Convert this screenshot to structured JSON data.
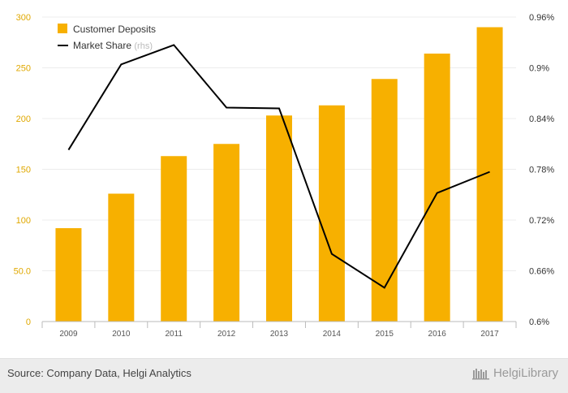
{
  "chart_data": {
    "type": "bar",
    "categories": [
      "2009",
      "2010",
      "2011",
      "2012",
      "2013",
      "2014",
      "2015",
      "2016",
      "2017"
    ],
    "series": [
      {
        "name": "Customer Deposits",
        "type": "bar",
        "axis": "left",
        "color": "#f7b000",
        "values": [
          92,
          126,
          163,
          175,
          203,
          213,
          239,
          264,
          290
        ]
      },
      {
        "name": "Market Share",
        "axis_note": "(rhs)",
        "type": "line",
        "axis": "right",
        "color": "#000000",
        "values": [
          0.803,
          0.904,
          0.927,
          0.853,
          0.852,
          0.68,
          0.64,
          0.752,
          0.777
        ]
      }
    ],
    "y_left": {
      "lim": [
        0,
        300
      ],
      "ticks": [
        0,
        50,
        100,
        150,
        200,
        250,
        300
      ],
      "tick_labels": [
        "0",
        "50.0",
        "100",
        "150",
        "200",
        "250",
        "300"
      ],
      "color": "#e0a800"
    },
    "y_right": {
      "lim": [
        0.6,
        0.96
      ],
      "ticks": [
        0.6,
        0.66,
        0.72,
        0.78,
        0.84,
        0.9,
        0.96
      ],
      "tick_labels": [
        "0.6%",
        "0.66%",
        "0.72%",
        "0.78%",
        "0.84%",
        "0.9%",
        "0.96%"
      ]
    },
    "grid": true,
    "legend_position": "top-left",
    "title": "",
    "xlabel": "",
    "ylabel": ""
  },
  "footer": {
    "source": "Source: Company Data, Helgi Analytics",
    "brand": "HelgiLibrary"
  }
}
